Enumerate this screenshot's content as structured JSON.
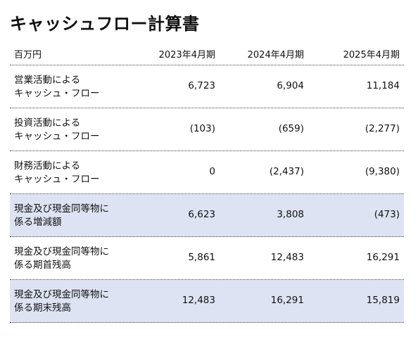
{
  "title": "キャッシュフロー計算書",
  "unit": "百万円",
  "columns": [
    "2023年4月期",
    "2024年4月期",
    "2025年4月期"
  ],
  "rows": [
    {
      "label1": "営業活動による",
      "label2": "キャッシュ・フロー",
      "values": [
        "6,723",
        "6,904",
        "11,184"
      ]
    },
    {
      "label1": "投資活動による",
      "label2": "キャッシュ・フロー",
      "values": [
        "(103)",
        "(659)",
        "(2,277)"
      ]
    },
    {
      "label1": "財務活動による",
      "label2": "キャッシュ・フロー",
      "values": [
        "0",
        "(2,437)",
        "(9,380)"
      ]
    },
    {
      "label1": "現金及び現金同等物に",
      "label2": "係る増減額",
      "values": [
        "6,623",
        "3,808",
        "(473)"
      ]
    },
    {
      "label1": "現金及び現金同等物に",
      "label2": "係る期首残高",
      "values": [
        "5,861",
        "12,483",
        "16,291"
      ]
    },
    {
      "label1": "現金及び現金同等物に",
      "label2": "係る期末残高",
      "values": [
        "12,483",
        "16,291",
        "15,819"
      ]
    }
  ],
  "colors": {
    "highlight_row": "#dde3f2"
  }
}
